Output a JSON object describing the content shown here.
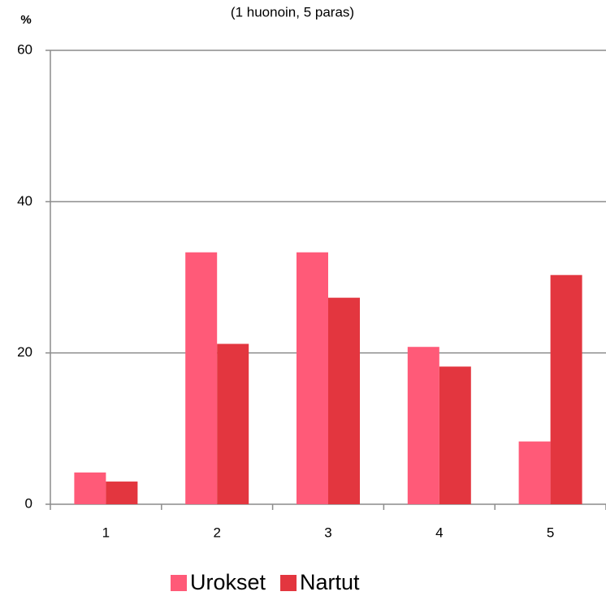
{
  "chart_data": {
    "type": "bar",
    "subtitle": "(1 huonoin, 5 paras)",
    "y_label": "%",
    "categories": [
      "1",
      "2",
      "3",
      "4",
      "5"
    ],
    "series": [
      {
        "name": "Urokset",
        "color": "#ff5a78",
        "values": [
          4.2,
          33.3,
          33.3,
          20.8,
          8.3
        ]
      },
      {
        "name": "Nartut",
        "color": "#e3363f",
        "values": [
          3.0,
          21.2,
          27.3,
          18.2,
          30.3
        ]
      }
    ],
    "ylim": [
      0,
      60
    ],
    "yticks": [
      0,
      20,
      40,
      60
    ],
    "grid": true,
    "legend": "bottom"
  }
}
